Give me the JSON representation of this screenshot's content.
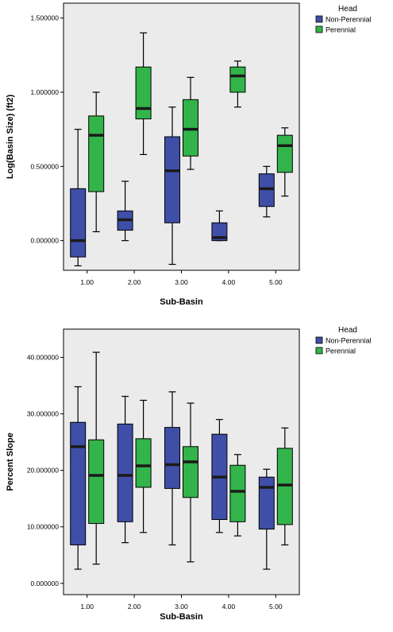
{
  "colors": {
    "non_perennial": "#3f4fa8",
    "perennial": "#33b44a",
    "plot_background": "#ebebeb",
    "median": "#1a1a1a"
  },
  "chart_data": [
    {
      "type": "box",
      "title": "",
      "xlabel": "Sub-Basin",
      "ylabel": "Log(Basin Size) (ft2)",
      "categories": [
        "1.00",
        "2.00",
        "3.00",
        "4.00",
        "5.00"
      ],
      "yticks": [
        "0.000000",
        "0.500000",
        "1.000000",
        "1.500000"
      ],
      "ytick_values": [
        0,
        0.5,
        1.0,
        1.5
      ],
      "ylim": [
        -0.2,
        1.6
      ],
      "legend": {
        "title": "Head",
        "position": "top-right",
        "entries": [
          "Non-Perennial",
          "Perennial"
        ]
      },
      "series": [
        {
          "name": "Non-Perennial",
          "boxes": [
            {
              "min": -0.17,
              "q1": -0.11,
              "median": 0.0,
              "q3": 0.35,
              "max": 0.75
            },
            {
              "min": 0.0,
              "q1": 0.07,
              "median": 0.14,
              "q3": 0.2,
              "max": 0.4
            },
            {
              "min": -0.16,
              "q1": 0.12,
              "median": 0.47,
              "q3": 0.7,
              "max": 0.9
            },
            {
              "min": 0.0,
              "q1": 0.0,
              "median": 0.02,
              "q3": 0.12,
              "max": 0.2
            },
            {
              "min": 0.16,
              "q1": 0.23,
              "median": 0.35,
              "q3": 0.45,
              "max": 0.5
            }
          ]
        },
        {
          "name": "Perennial",
          "boxes": [
            {
              "min": 0.06,
              "q1": 0.33,
              "median": 0.71,
              "q3": 0.84,
              "max": 1.0
            },
            {
              "min": 0.58,
              "q1": 0.82,
              "median": 0.89,
              "q3": 1.17,
              "max": 1.4
            },
            {
              "min": 0.48,
              "q1": 0.57,
              "median": 0.75,
              "q3": 0.95,
              "max": 1.1
            },
            {
              "min": 0.9,
              "q1": 1.0,
              "median": 1.11,
              "q3": 1.17,
              "max": 1.21
            },
            {
              "min": 0.3,
              "q1": 0.46,
              "median": 0.64,
              "q3": 0.71,
              "max": 0.76
            }
          ]
        }
      ]
    },
    {
      "type": "box",
      "title": "",
      "xlabel": "Sub-Basin",
      "ylabel": "Percent Slope",
      "categories": [
        "1.00",
        "2.00",
        "3.00",
        "4.00",
        "5.00"
      ],
      "yticks": [
        "0.000000",
        "10.000000",
        "20.000000",
        "30.000000",
        "40.000000"
      ],
      "ytick_values": [
        0,
        10,
        20,
        30,
        40
      ],
      "ylim": [
        -2,
        45
      ],
      "legend": {
        "title": "Head",
        "position": "top-right",
        "entries": [
          "Non-Perennial",
          "Perennial"
        ]
      },
      "series": [
        {
          "name": "Non-Perennial",
          "boxes": [
            {
              "min": 2.5,
              "q1": 6.8,
              "median": 24.2,
              "q3": 28.5,
              "max": 34.8
            },
            {
              "min": 7.2,
              "q1": 10.9,
              "median": 19.1,
              "q3": 28.2,
              "max": 33.1
            },
            {
              "min": 6.8,
              "q1": 16.8,
              "median": 21.0,
              "q3": 27.6,
              "max": 33.9
            },
            {
              "min": 9.0,
              "q1": 11.3,
              "median": 18.8,
              "q3": 26.4,
              "max": 29.0
            },
            {
              "min": 2.5,
              "q1": 9.6,
              "median": 17.0,
              "q3": 18.8,
              "max": 20.2
            }
          ]
        },
        {
          "name": "Perennial",
          "boxes": [
            {
              "min": 3.4,
              "q1": 10.6,
              "median": 19.1,
              "q3": 25.4,
              "max": 40.9
            },
            {
              "min": 9.0,
              "q1": 17.0,
              "median": 20.8,
              "q3": 25.6,
              "max": 32.4
            },
            {
              "min": 3.8,
              "q1": 15.2,
              "median": 21.5,
              "q3": 24.2,
              "max": 31.9
            },
            {
              "min": 8.4,
              "q1": 10.9,
              "median": 16.3,
              "q3": 20.9,
              "max": 22.8
            },
            {
              "min": 6.8,
              "q1": 10.4,
              "median": 17.4,
              "q3": 23.9,
              "max": 27.5
            }
          ]
        }
      ]
    }
  ]
}
